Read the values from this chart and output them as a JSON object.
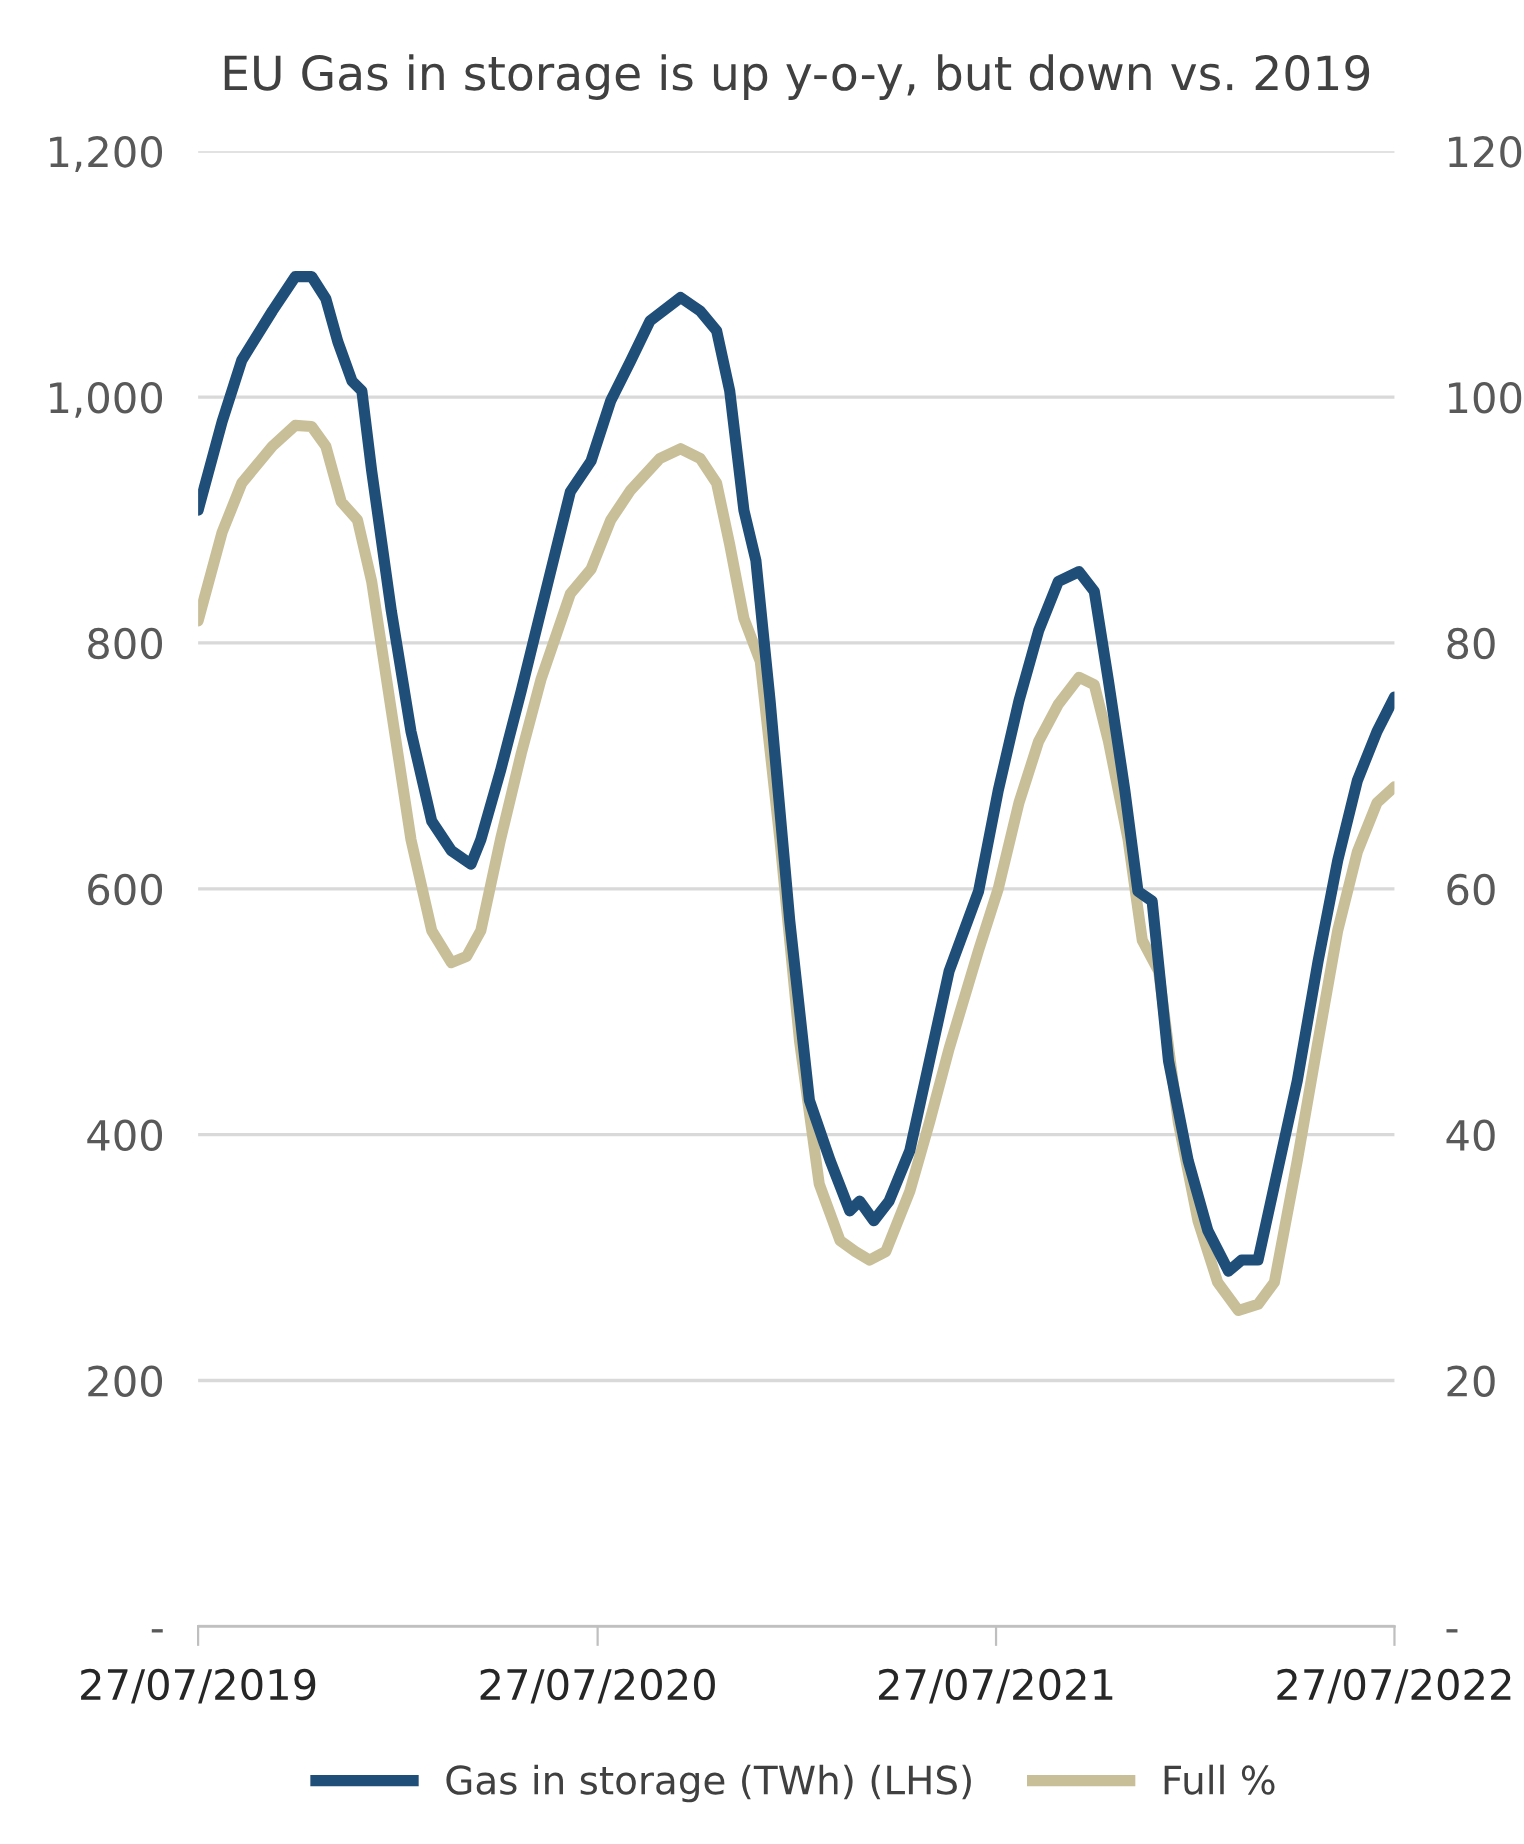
{
  "chart_data": {
    "type": "line",
    "title": "EU Gas in storage is up y-o-y, but down vs. 2019",
    "xlim": [
      "2019-07-27",
      "2022-07-27"
    ],
    "xticks": [
      {
        "value": "2019-07-27",
        "label": "27/07/2019"
      },
      {
        "value": "2020-07-27",
        "label": "27/07/2020"
      },
      {
        "value": "2021-07-27",
        "label": "27/07/2021"
      },
      {
        "value": "2022-07-27",
        "label": "27/07/2022"
      }
    ],
    "ylim": [
      0,
      1200
    ],
    "yticks": [
      {
        "value": 0,
        "label": "-"
      },
      200,
      400,
      600,
      800,
      {
        "value": 1000,
        "label": "1,000"
      },
      {
        "value": 1200,
        "label": "1,200"
      }
    ],
    "y2lim": [
      0,
      120
    ],
    "y2ticks": [
      {
        "value": 0,
        "label": "-"
      },
      20,
      40,
      60,
      80,
      100,
      120
    ],
    "grid": "y",
    "legend": "bottom",
    "line_style": "solid",
    "marker": "none",
    "series": [
      {
        "name": "Gas in storage (TWh) (LHS)",
        "color": "#1f4e79",
        "x": [
          "2019-07-27",
          "2019-08-18",
          "2019-09-05",
          "2019-10-03",
          "2019-10-24",
          "2019-11-08",
          "2019-11-21",
          "2019-12-02",
          "2019-12-15",
          "2019-12-24",
          "2020-01-02",
          "2020-01-20",
          "2020-02-07",
          "2020-02-26",
          "2020-03-15",
          "2020-04-02",
          "2020-04-11",
          "2020-04-29",
          "2020-05-18",
          "2020-06-05",
          "2020-07-02",
          "2020-07-21",
          "2020-08-08",
          "2020-08-26",
          "2020-09-13",
          "2020-10-11",
          "2020-10-29",
          "2020-11-13",
          "2020-11-25",
          "2020-12-08",
          "2020-12-19",
          "2021-01-01",
          "2021-01-19",
          "2021-02-06",
          "2021-02-25",
          "2021-03-15",
          "2021-03-24",
          "2021-04-06",
          "2021-04-20",
          "2021-05-09",
          "2021-05-27",
          "2021-06-14",
          "2021-07-11",
          "2021-07-29",
          "2021-08-17",
          "2021-09-04",
          "2021-09-22",
          "2021-10-11",
          "2021-10-25",
          "2021-11-07",
          "2021-11-22",
          "2021-12-04",
          "2021-12-17",
          "2022-01-01",
          "2022-01-19",
          "2022-02-06",
          "2022-02-25",
          "2022-03-09",
          "2022-03-24",
          "2022-04-11",
          "2022-04-29",
          "2022-05-18",
          "2022-06-05",
          "2022-06-23",
          "2022-07-11",
          "2022-07-27"
        ],
        "values": [
          908,
          980,
          1030,
          1070,
          1098,
          1098,
          1080,
          1045,
          1013,
          1005,
          940,
          826,
          728,
          655,
          631,
          620,
          640,
          696,
          761,
          826,
          923,
          948,
          997,
          1029,
          1062,
          1081,
          1070,
          1054,
          1005,
          908,
          867,
          753,
          574,
          428,
          379,
          338,
          346,
          330,
          346,
          387,
          460,
          533,
          598,
          680,
          753,
          810,
          850,
          858,
          842,
          769,
          680,
          598,
          590,
          460,
          379,
          322,
          289,
          298,
          298,
          371,
          444,
          541,
          623,
          688,
          728,
          756
        ]
      },
      {
        "name": "Full %",
        "color": "#c8bf99",
        "axis": "y2",
        "x": [
          "2019-07-27",
          "2019-08-18",
          "2019-09-05",
          "2019-10-03",
          "2019-10-24",
          "2019-11-08",
          "2019-11-21",
          "2019-12-05",
          "2019-12-20",
          "2020-01-02",
          "2020-01-20",
          "2020-02-07",
          "2020-02-26",
          "2020-03-15",
          "2020-03-29",
          "2020-04-11",
          "2020-04-29",
          "2020-05-18",
          "2020-06-05",
          "2020-07-02",
          "2020-07-21",
          "2020-08-08",
          "2020-08-26",
          "2020-09-22",
          "2020-10-11",
          "2020-10-29",
          "2020-11-13",
          "2020-11-25",
          "2020-12-08",
          "2020-12-23",
          "2021-01-10",
          "2021-01-28",
          "2021-02-15",
          "2021-03-06",
          "2021-03-20",
          "2021-04-02",
          "2021-04-17",
          "2021-05-09",
          "2021-05-27",
          "2021-06-14",
          "2021-07-11",
          "2021-07-29",
          "2021-08-17",
          "2021-09-04",
          "2021-09-22",
          "2021-10-11",
          "2021-10-25",
          "2021-11-07",
          "2021-11-25",
          "2021-12-08",
          "2021-12-23",
          "2022-01-10",
          "2022-01-28",
          "2022-02-15",
          "2022-03-06",
          "2022-03-24",
          "2022-04-08",
          "2022-04-29",
          "2022-05-18",
          "2022-06-05",
          "2022-06-23",
          "2022-07-11",
          "2022-07-27"
        ],
        "values": [
          81.8,
          89,
          93,
          96,
          97.7,
          97.6,
          96,
          91.5,
          90,
          85,
          74.5,
          64,
          56.6,
          54,
          54.5,
          56.6,
          64,
          71,
          77,
          84,
          86,
          90,
          92.4,
          95,
          95.8,
          95,
          93,
          88,
          82,
          78.5,
          64,
          47.6,
          36,
          31.4,
          30.5,
          29.8,
          30.5,
          35.4,
          41,
          47,
          55,
          60,
          67,
          72,
          75,
          77.2,
          76.6,
          72,
          64,
          55.8,
          53.3,
          41,
          33,
          28,
          25.7,
          26.2,
          28,
          37.9,
          47.6,
          56.6,
          63,
          67,
          68.3
        ]
      }
    ]
  }
}
